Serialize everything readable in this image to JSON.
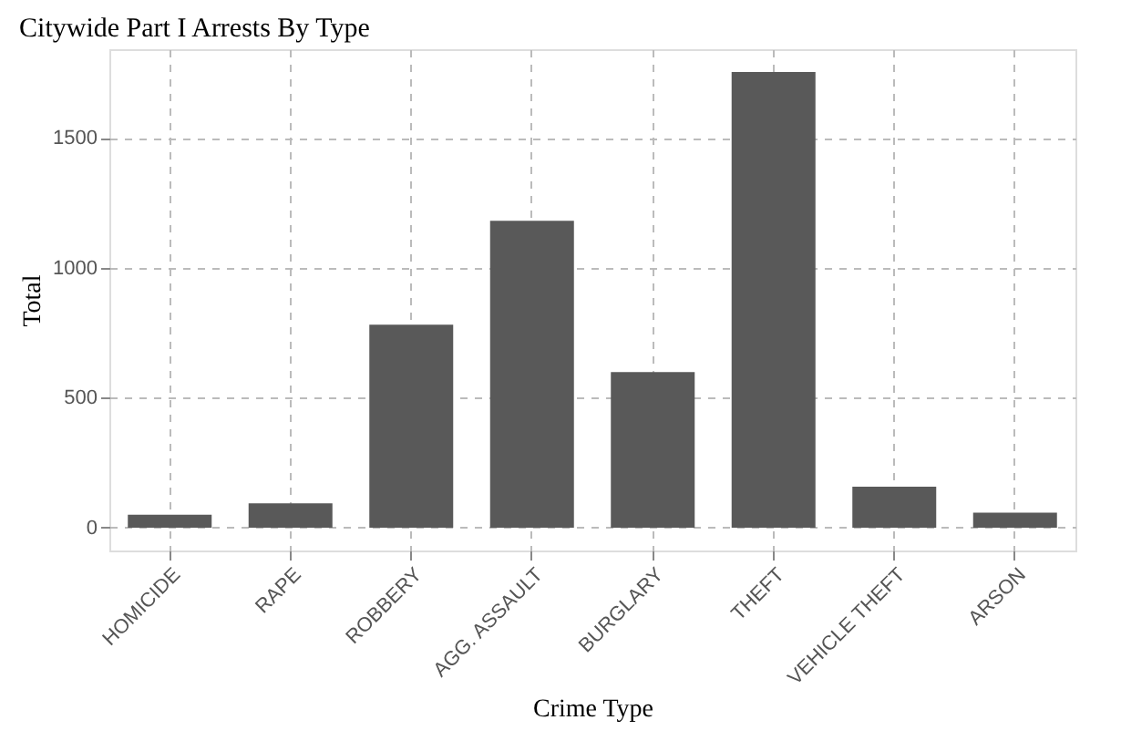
{
  "chart_data": {
    "type": "bar",
    "title": "Citywide Part I Arrests By Type",
    "xlabel": "Crime Type",
    "ylabel": "Total",
    "categories": [
      "HOMICIDE",
      "RAPE",
      "ROBBERY",
      "AGG. ASSAULT",
      "BURGLARY",
      "THEFT",
      "VEHICLE THEFT",
      "ARSON"
    ],
    "values": [
      50,
      94,
      781,
      1181,
      599,
      1754,
      158,
      58
    ],
    "color": "#595959",
    "ylim": [
      -88,
      1842
    ],
    "yticks": [
      0,
      500,
      1000,
      1500
    ],
    "grid": true
  }
}
